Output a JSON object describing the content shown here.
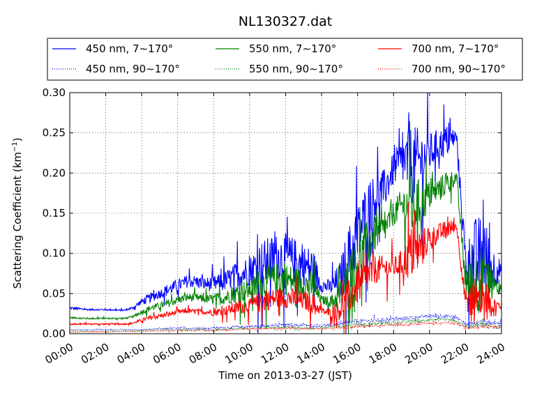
{
  "chart_data": {
    "type": "line",
    "title": "NL130327.dat",
    "xlabel": "Time on 2013-03-27 (JST)",
    "ylabel": "Scattering Coefficient (km",
    "ylabel_sup": "−1",
    "ylabel_close": ")",
    "xlim": [
      0,
      24
    ],
    "ylim": [
      0,
      0.3
    ],
    "grid": true,
    "legend_position": "top",
    "x_tick_labels": [
      "00:00",
      "02:00",
      "04:00",
      "06:00",
      "08:00",
      "10:00",
      "12:00",
      "14:00",
      "16:00",
      "18:00",
      "20:00",
      "22:00",
      "24:00"
    ],
    "y_tick_labels": [
      "0.00",
      "0.05",
      "0.10",
      "0.15",
      "0.20",
      "0.25",
      "0.30"
    ],
    "series": [
      {
        "name": "450 nm, 7∼170°",
        "color": "#0000ff",
        "style": "solid",
        "x": [
          0,
          1,
          2,
          3,
          3.5,
          4,
          4.5,
          5,
          5.5,
          6,
          6.5,
          7,
          7.5,
          8,
          8.5,
          9,
          9.5,
          10,
          10.5,
          11,
          11.5,
          12,
          12.5,
          13,
          13.5,
          14,
          14.5,
          15,
          15.5,
          16,
          16.5,
          17,
          17.5,
          18,
          18.5,
          19,
          19.5,
          20,
          20.5,
          21,
          21.5,
          22,
          22.5,
          23,
          23.5,
          24
        ],
        "y": [
          0.032,
          0.03,
          0.03,
          0.029,
          0.032,
          0.04,
          0.045,
          0.05,
          0.055,
          0.06,
          0.065,
          0.065,
          0.062,
          0.062,
          0.064,
          0.07,
          0.075,
          0.078,
          0.085,
          0.09,
          0.095,
          0.095,
          0.09,
          0.085,
          0.08,
          0.06,
          0.058,
          0.065,
          0.095,
          0.12,
          0.15,
          0.17,
          0.18,
          0.205,
          0.215,
          0.21,
          0.215,
          0.225,
          0.235,
          0.24,
          0.245,
          0.09,
          0.085,
          0.1,
          0.08,
          0.08
        ],
        "amp": [
          0.002,
          0.001,
          0.001,
          0.001,
          0.002,
          0.004,
          0.006,
          0.006,
          0.008,
          0.008,
          0.008,
          0.008,
          0.008,
          0.01,
          0.012,
          0.014,
          0.02,
          0.018,
          0.03,
          0.03,
          0.03,
          0.03,
          0.03,
          0.025,
          0.03,
          0.008,
          0.01,
          0.025,
          0.04,
          0.04,
          0.04,
          0.03,
          0.025,
          0.02,
          0.03,
          0.05,
          0.04,
          0.025,
          0.02,
          0.02,
          0.01,
          0.02,
          0.06,
          0.05,
          0.03,
          0.01
        ]
      },
      {
        "name": "550 nm, 7∼170°",
        "color": "#008000",
        "style": "solid",
        "x": [
          0,
          1,
          2,
          3,
          3.5,
          4,
          4.5,
          5,
          5.5,
          6,
          6.5,
          7,
          7.5,
          8,
          8.5,
          9,
          9.5,
          10,
          10.5,
          11,
          11.5,
          12,
          12.5,
          13,
          13.5,
          14,
          14.5,
          15,
          15.5,
          16,
          16.5,
          17,
          17.5,
          18,
          18.5,
          19,
          19.5,
          20,
          20.5,
          21,
          21.5,
          22,
          22.5,
          23,
          23.5,
          24
        ],
        "y": [
          0.02,
          0.019,
          0.019,
          0.019,
          0.021,
          0.027,
          0.032,
          0.035,
          0.038,
          0.042,
          0.045,
          0.045,
          0.043,
          0.043,
          0.044,
          0.048,
          0.052,
          0.055,
          0.06,
          0.065,
          0.068,
          0.068,
          0.065,
          0.062,
          0.058,
          0.042,
          0.04,
          0.046,
          0.07,
          0.09,
          0.11,
          0.125,
          0.13,
          0.15,
          0.16,
          0.158,
          0.162,
          0.172,
          0.18,
          0.188,
          0.195,
          0.065,
          0.06,
          0.075,
          0.058,
          0.055
        ],
        "amp": [
          0.001,
          0.001,
          0.001,
          0.001,
          0.001,
          0.003,
          0.004,
          0.004,
          0.005,
          0.005,
          0.005,
          0.005,
          0.005,
          0.007,
          0.008,
          0.01,
          0.014,
          0.012,
          0.02,
          0.02,
          0.02,
          0.02,
          0.02,
          0.018,
          0.02,
          0.005,
          0.007,
          0.018,
          0.03,
          0.03,
          0.03,
          0.022,
          0.018,
          0.015,
          0.022,
          0.04,
          0.03,
          0.018,
          0.015,
          0.015,
          0.008,
          0.015,
          0.045,
          0.04,
          0.022,
          0.008
        ]
      },
      {
        "name": "700 nm, 7∼170°",
        "color": "#ff0000",
        "style": "solid",
        "x": [
          0,
          1,
          2,
          3,
          3.5,
          4,
          4.5,
          5,
          5.5,
          6,
          6.5,
          7,
          7.5,
          8,
          8.5,
          9,
          9.5,
          10,
          10.5,
          11,
          11.5,
          12,
          12.5,
          13,
          13.5,
          14,
          14.5,
          15,
          15.5,
          16,
          16.5,
          17,
          17.5,
          18,
          18.5,
          19,
          19.5,
          20,
          20.5,
          21,
          21.5,
          22,
          22.5,
          23,
          23.5,
          24
        ],
        "y": [
          0.012,
          0.012,
          0.012,
          0.012,
          0.013,
          0.017,
          0.02,
          0.022,
          0.024,
          0.027,
          0.028,
          0.028,
          0.027,
          0.027,
          0.028,
          0.031,
          0.033,
          0.035,
          0.038,
          0.042,
          0.044,
          0.045,
          0.043,
          0.041,
          0.038,
          0.028,
          0.026,
          0.03,
          0.045,
          0.058,
          0.07,
          0.08,
          0.082,
          0.082,
          0.088,
          0.1,
          0.108,
          0.118,
          0.125,
          0.13,
          0.135,
          0.04,
          0.035,
          0.045,
          0.035,
          0.035
        ],
        "amp": [
          0.001,
          0.001,
          0.001,
          0.001,
          0.001,
          0.002,
          0.003,
          0.003,
          0.003,
          0.003,
          0.003,
          0.003,
          0.003,
          0.005,
          0.005,
          0.007,
          0.009,
          0.008,
          0.013,
          0.013,
          0.013,
          0.013,
          0.013,
          0.012,
          0.013,
          0.004,
          0.006,
          0.014,
          0.022,
          0.022,
          0.025,
          0.018,
          0.015,
          0.012,
          0.018,
          0.035,
          0.025,
          0.015,
          0.012,
          0.012,
          0.006,
          0.012,
          0.035,
          0.03,
          0.015,
          0.005
        ]
      },
      {
        "name": "450 nm, 90∼170°",
        "color": "#0000ff",
        "style": "dotted",
        "x": [
          0,
          2,
          4,
          6,
          8,
          10,
          12,
          14,
          15,
          16,
          18,
          20,
          21,
          21.5,
          22,
          23,
          24
        ],
        "y": [
          0.005,
          0.005,
          0.005,
          0.007,
          0.007,
          0.009,
          0.011,
          0.01,
          0.012,
          0.015,
          0.018,
          0.022,
          0.022,
          0.02,
          0.012,
          0.015,
          0.012
        ],
        "amp": [
          0.0005,
          0.0005,
          0.0005,
          0.001,
          0.001,
          0.0015,
          0.002,
          0.001,
          0.002,
          0.003,
          0.002,
          0.002,
          0.002,
          0.002,
          0.003,
          0.004,
          0.002
        ]
      },
      {
        "name": "550 nm, 90∼170°",
        "color": "#008000",
        "style": "dotted",
        "x": [
          0,
          2,
          4,
          6,
          8,
          10,
          12,
          14,
          15,
          16,
          18,
          20,
          21,
          21.5,
          22,
          23,
          24
        ],
        "y": [
          0.003,
          0.003,
          0.004,
          0.005,
          0.005,
          0.007,
          0.008,
          0.007,
          0.009,
          0.011,
          0.014,
          0.017,
          0.018,
          0.016,
          0.009,
          0.011,
          0.009
        ],
        "amp": [
          0.0004,
          0.0004,
          0.0004,
          0.0008,
          0.0008,
          0.001,
          0.0015,
          0.001,
          0.0015,
          0.002,
          0.002,
          0.002,
          0.002,
          0.002,
          0.002,
          0.003,
          0.002
        ]
      },
      {
        "name": "700 nm, 90∼170°",
        "color": "#ff0000",
        "style": "dotted",
        "x": [
          0,
          2,
          4,
          6,
          8,
          10,
          12,
          14,
          15,
          16,
          18,
          20,
          21,
          21.5,
          22,
          23,
          24
        ],
        "y": [
          0.002,
          0.002,
          0.003,
          0.004,
          0.004,
          0.006,
          0.007,
          0.006,
          0.007,
          0.009,
          0.011,
          0.013,
          0.014,
          0.013,
          0.007,
          0.009,
          0.007
        ],
        "amp": [
          0.0003,
          0.0003,
          0.0003,
          0.0006,
          0.0006,
          0.0008,
          0.001,
          0.0008,
          0.001,
          0.0015,
          0.0015,
          0.0015,
          0.0015,
          0.0015,
          0.0015,
          0.002,
          0.0015
        ]
      }
    ]
  }
}
